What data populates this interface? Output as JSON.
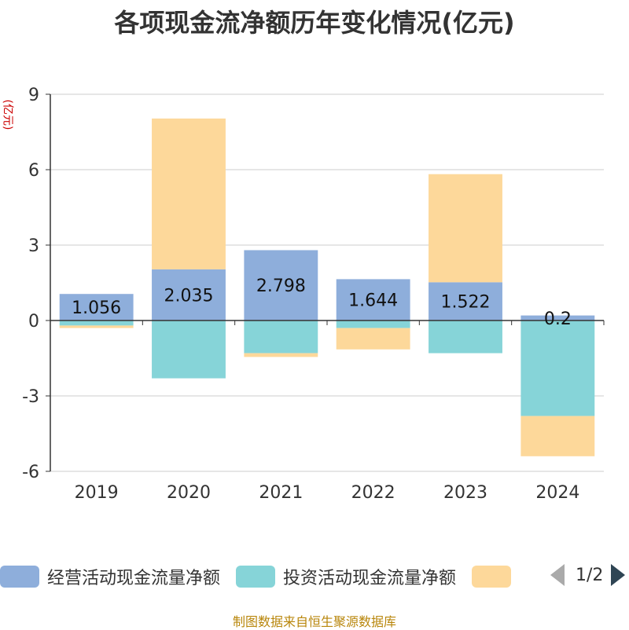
{
  "title": "各项现金流净额历年变化情况(亿元)",
  "unit_label": "(亿元)",
  "legend": {
    "items": [
      {
        "label": "经营活动现金流量净额",
        "color": "#8eaedb"
      },
      {
        "label": "投资活动现金流量净额",
        "color": "#86d4d8"
      },
      {
        "label": "",
        "color": "#fdd89a"
      }
    ],
    "page_indicator": "1/2"
  },
  "source": "制图数据来自恒生聚源数据库",
  "chart_data": {
    "type": "bar",
    "stacked": true,
    "categories": [
      "2019",
      "2020",
      "2021",
      "2022",
      "2023",
      "2024"
    ],
    "series": [
      {
        "name": "经营活动现金流量净额",
        "color": "#8eaedb",
        "values": [
          1.056,
          2.035,
          2.798,
          1.644,
          1.522,
          0.2
        ],
        "labels": [
          "1.056",
          "2.035",
          "2.798",
          "1.644",
          "1.522",
          "0.2"
        ]
      },
      {
        "name": "投资活动现金流量净额",
        "color": "#86d4d8",
        "values": [
          -0.2,
          -2.3,
          -1.3,
          -0.3,
          -1.3,
          -3.8
        ]
      },
      {
        "color": "#fdd89a",
        "values": [
          -0.1,
          6.0,
          -0.15,
          -0.85,
          4.3,
          -1.6
        ]
      }
    ],
    "ylim": [
      -6,
      9
    ],
    "yticks": [
      -6,
      -3,
      0,
      3,
      6,
      9
    ],
    "grid": true
  }
}
